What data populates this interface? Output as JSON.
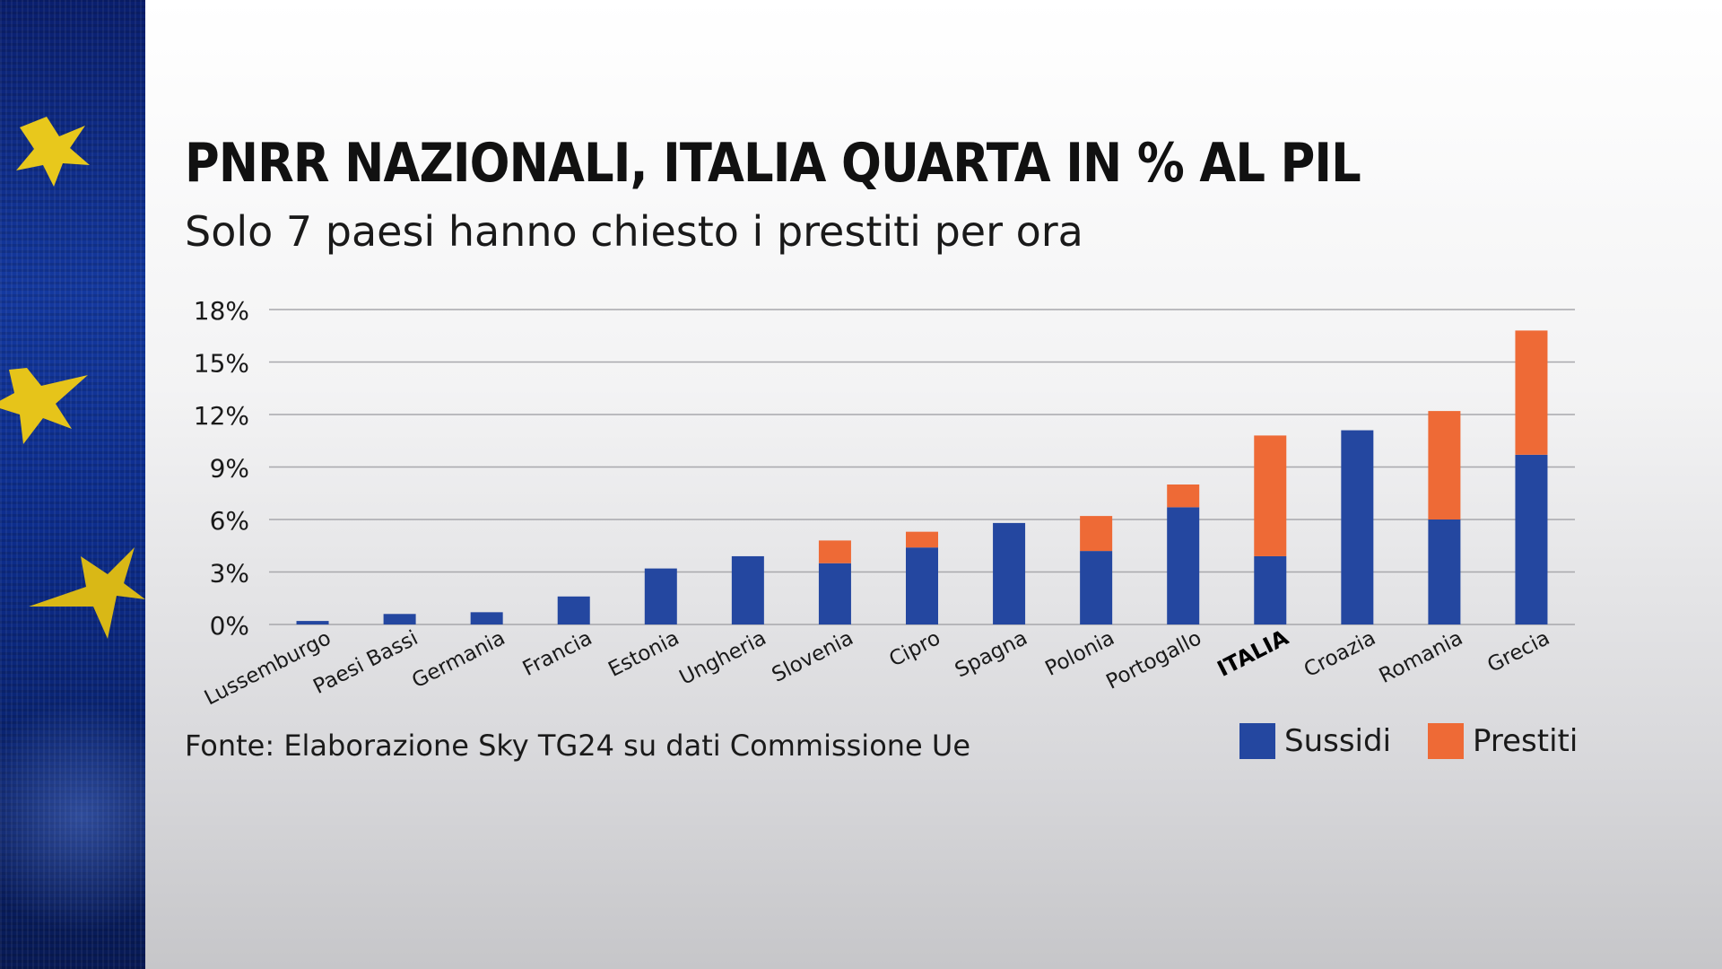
{
  "title": "PNRR NAZIONALI, ITALIA QUARTA IN % AL PIL",
  "subtitle": "Solo 7 paesi hanno chiesto i prestiti per ora",
  "source": "Fonte: Elaborazione Sky TG24 su dati Commissione Ue",
  "colors": {
    "sussidi": "#2447a0",
    "prestiti": "#ee6a36",
    "grid": "#a8a8ac",
    "text": "#1a1a1a"
  },
  "chart_data": {
    "type": "bar",
    "stacked": true,
    "categories": [
      "Lussemburgo",
      "Paesi Bassi",
      "Germania",
      "Francia",
      "Estonia",
      "Ungheria",
      "Slovenia",
      "Cipro",
      "Spagna",
      "Polonia",
      "Portogallo",
      "ITALIA",
      "Croazia",
      "Romania",
      "Grecia"
    ],
    "highlight_category": "ITALIA",
    "series": [
      {
        "name": "Sussidi",
        "color": "#2447a0",
        "values": [
          0.2,
          0.6,
          0.7,
          1.6,
          3.2,
          3.9,
          3.5,
          4.4,
          5.8,
          4.2,
          6.7,
          3.9,
          11.1,
          6.0,
          9.7
        ]
      },
      {
        "name": "Prestiti",
        "color": "#ee6a36",
        "values": [
          0,
          0,
          0,
          0,
          0,
          0,
          1.3,
          0.9,
          0,
          2.0,
          1.3,
          6.9,
          0,
          6.2,
          7.1
        ]
      }
    ],
    "yticks": [
      "0%",
      "3%",
      "6%",
      "9%",
      "12%",
      "15%",
      "18%"
    ],
    "ylim": [
      0,
      18
    ],
    "grid": true,
    "legend": "bottom-right"
  }
}
